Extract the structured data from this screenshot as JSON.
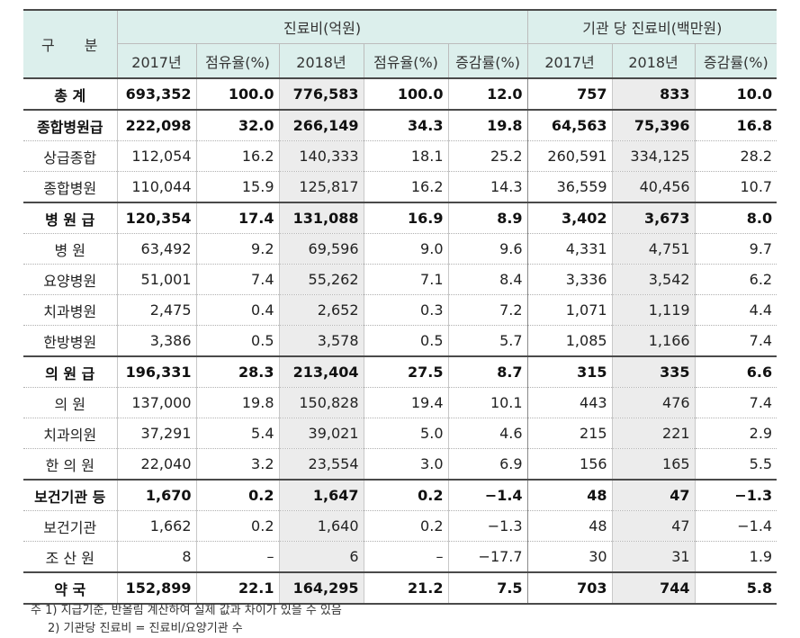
{
  "table": {
    "header": {
      "gubun": "구 분",
      "group1": "진료비(억원)",
      "group2": "기관 당 진료비(백만원)",
      "columns": [
        "2017년",
        "점유율(%)",
        "2018년",
        "점유율(%)",
        "증감률(%)",
        "2017년",
        "2018년",
        "증감률(%)"
      ]
    },
    "rows": [
      {
        "label": "총 계",
        "type": "major",
        "cells": [
          "693,352",
          "100.0",
          "776,583",
          "100.0",
          "12.0",
          "757",
          "833",
          "10.0"
        ]
      },
      {
        "label": "종합병원급",
        "type": "major",
        "cells": [
          "222,098",
          "32.0",
          "266,149",
          "34.3",
          "19.8",
          "64,563",
          "75,396",
          "16.8"
        ]
      },
      {
        "label": "상급종합",
        "type": "minor",
        "cells": [
          "112,054",
          "16.2",
          "140,333",
          "18.1",
          "25.2",
          "260,591",
          "334,125",
          "28.2"
        ]
      },
      {
        "label": "종합병원",
        "type": "minor",
        "cells": [
          "110,044",
          "15.9",
          "125,817",
          "16.2",
          "14.3",
          "36,559",
          "40,456",
          "10.7"
        ]
      },
      {
        "label": "병 원 급",
        "type": "major",
        "cells": [
          "120,354",
          "17.4",
          "131,088",
          "16.9",
          "8.9",
          "3,402",
          "3,673",
          "8.0"
        ]
      },
      {
        "label": "병 원",
        "type": "minor",
        "cells": [
          "63,492",
          "9.2",
          "69,596",
          "9.0",
          "9.6",
          "4,331",
          "4,751",
          "9.7"
        ]
      },
      {
        "label": "요양병원",
        "type": "minor",
        "cells": [
          "51,001",
          "7.4",
          "55,262",
          "7.1",
          "8.4",
          "3,336",
          "3,542",
          "6.2"
        ]
      },
      {
        "label": "치과병원",
        "type": "minor",
        "cells": [
          "2,475",
          "0.4",
          "2,652",
          "0.3",
          "7.2",
          "1,071",
          "1,119",
          "4.4"
        ]
      },
      {
        "label": "한방병원",
        "type": "minor",
        "cells": [
          "3,386",
          "0.5",
          "3,578",
          "0.5",
          "5.7",
          "1,085",
          "1,166",
          "7.4"
        ]
      },
      {
        "label": "의 원 급",
        "type": "major",
        "cells": [
          "196,331",
          "28.3",
          "213,404",
          "27.5",
          "8.7",
          "315",
          "335",
          "6.6"
        ]
      },
      {
        "label": "의 원",
        "type": "minor",
        "cells": [
          "137,000",
          "19.8",
          "150,828",
          "19.4",
          "10.1",
          "443",
          "476",
          "7.4"
        ]
      },
      {
        "label": "치과의원",
        "type": "minor",
        "cells": [
          "37,291",
          "5.4",
          "39,021",
          "5.0",
          "4.6",
          "215",
          "221",
          "2.9"
        ]
      },
      {
        "label": "한 의 원",
        "type": "minor",
        "cells": [
          "22,040",
          "3.2",
          "23,554",
          "3.0",
          "6.9",
          "156",
          "165",
          "5.5"
        ]
      },
      {
        "label": "보건기관 등",
        "type": "major",
        "cells": [
          "1,670",
          "0.2",
          "1,647",
          "0.2",
          "−1.4",
          "48",
          "47",
          "−1.3"
        ]
      },
      {
        "label": "보건기관",
        "type": "minor",
        "cells": [
          "1,662",
          "0.2",
          "1,640",
          "0.2",
          "−1.3",
          "48",
          "47",
          "−1.4"
        ]
      },
      {
        "label": "조 산 원",
        "type": "minor",
        "cells": [
          "8",
          "–",
          "6",
          "–",
          "−17.7",
          "30",
          "31",
          "1.9"
        ]
      },
      {
        "label": "약 국",
        "type": "major",
        "cells": [
          "152,899",
          "22.1",
          "164,295",
          "21.2",
          "7.5",
          "703",
          "744",
          "5.8"
        ]
      }
    ]
  },
  "notes": {
    "note1": "주 1) 지급기준, 반올림 계산하여 실제 값과 차이가 있을 수 있음",
    "note2": "2) 기관당 진료비 = 진료비/요양기관 수"
  },
  "colors": {
    "header_bg": "#dcefec",
    "highlight_col_bg": "#ececec",
    "rule": "#4a4a4a"
  }
}
